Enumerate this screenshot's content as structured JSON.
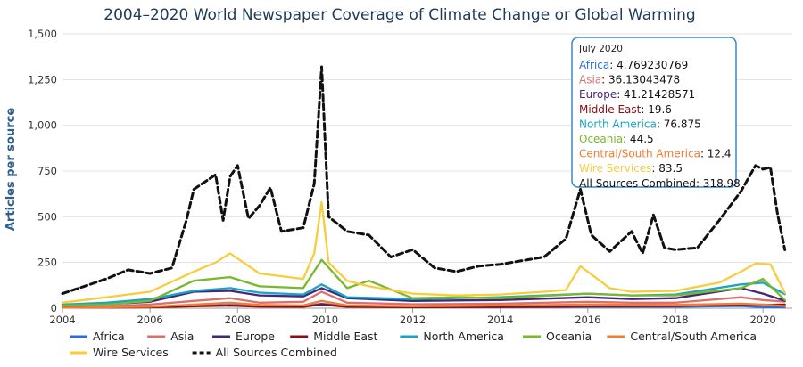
{
  "chart_data": {
    "type": "line",
    "title": "2004–2020 World Newspaper Coverage of Climate Change or Global Warming",
    "ylabel": "Articles per source",
    "xlabel": "",
    "xlim": [
      2004,
      2020.67
    ],
    "ylim": [
      0,
      1500
    ],
    "x_ticks": [
      "2004",
      "2006",
      "2008",
      "2010",
      "2012",
      "2014",
      "2016",
      "2018",
      "2020"
    ],
    "y_ticks": [
      "0",
      "250",
      "500",
      "750",
      "1,000",
      "1,250",
      "1,500"
    ],
    "grid": true,
    "legend_position": "bottom",
    "series": [
      {
        "name": "Africa",
        "color": "#2b6fd6",
        "dashed": false,
        "points": [
          [
            2004,
            5
          ],
          [
            2005,
            6
          ],
          [
            2006,
            8
          ],
          [
            2007,
            12
          ],
          [
            2007.83,
            18
          ],
          [
            2008.5,
            11
          ],
          [
            2009.5,
            9
          ],
          [
            2009.92,
            25
          ],
          [
            2010.5,
            9
          ],
          [
            2012,
            5
          ],
          [
            2014,
            5
          ],
          [
            2016,
            7
          ],
          [
            2018,
            8
          ],
          [
            2019.5,
            12
          ],
          [
            2020,
            6
          ],
          [
            2020.5,
            5
          ]
        ]
      },
      {
        "name": "Asia",
        "color": "#d9706e",
        "dashed": false,
        "points": [
          [
            2004,
            5
          ],
          [
            2005,
            10
          ],
          [
            2006,
            20
          ],
          [
            2007,
            40
          ],
          [
            2007.83,
            55
          ],
          [
            2008.5,
            30
          ],
          [
            2009.5,
            35
          ],
          [
            2009.92,
            90
          ],
          [
            2010.5,
            30
          ],
          [
            2012,
            22
          ],
          [
            2014,
            25
          ],
          [
            2016,
            35
          ],
          [
            2017,
            30
          ],
          [
            2018,
            30
          ],
          [
            2019.5,
            60
          ],
          [
            2020,
            45
          ],
          [
            2020.5,
            36
          ]
        ]
      },
      {
        "name": "Europe",
        "color": "#452779",
        "dashed": false,
        "points": [
          [
            2004,
            15
          ],
          [
            2005,
            22
          ],
          [
            2006,
            35
          ],
          [
            2007,
            90
          ],
          [
            2007.83,
            95
          ],
          [
            2008.5,
            70
          ],
          [
            2009.5,
            65
          ],
          [
            2009.92,
            110
          ],
          [
            2010.5,
            55
          ],
          [
            2012,
            40
          ],
          [
            2014,
            45
          ],
          [
            2016,
            60
          ],
          [
            2017,
            50
          ],
          [
            2018,
            55
          ],
          [
            2019.5,
            110
          ],
          [
            2020,
            80
          ],
          [
            2020.5,
            41
          ]
        ]
      },
      {
        "name": "Middle East",
        "color": "#8b0e14",
        "dashed": false,
        "points": [
          [
            2004,
            3
          ],
          [
            2005,
            4
          ],
          [
            2006,
            5
          ],
          [
            2007,
            10
          ],
          [
            2007.83,
            14
          ],
          [
            2008.5,
            9
          ],
          [
            2009.5,
            8
          ],
          [
            2009.92,
            20
          ],
          [
            2010.5,
            8
          ],
          [
            2012,
            6
          ],
          [
            2014,
            7
          ],
          [
            2016,
            10
          ],
          [
            2018,
            12
          ],
          [
            2019.5,
            20
          ],
          [
            2020,
            18
          ],
          [
            2020.5,
            20
          ]
        ]
      },
      {
        "name": "North America",
        "color": "#1aa3c6",
        "dashed": false,
        "points": [
          [
            2004,
            20
          ],
          [
            2005,
            30
          ],
          [
            2006,
            50
          ],
          [
            2007,
            95
          ],
          [
            2007.83,
            110
          ],
          [
            2008.5,
            85
          ],
          [
            2009.5,
            75
          ],
          [
            2009.92,
            130
          ],
          [
            2010.5,
            60
          ],
          [
            2012,
            50
          ],
          [
            2014,
            60
          ],
          [
            2016,
            80
          ],
          [
            2017,
            70
          ],
          [
            2018,
            75
          ],
          [
            2019.5,
            130
          ],
          [
            2020,
            140
          ],
          [
            2020.5,
            77
          ]
        ]
      },
      {
        "name": "Oceania",
        "color": "#79b82c",
        "dashed": false,
        "points": [
          [
            2004,
            15
          ],
          [
            2005,
            20
          ],
          [
            2006,
            40
          ],
          [
            2007,
            150
          ],
          [
            2007.83,
            170
          ],
          [
            2008.5,
            120
          ],
          [
            2009.5,
            110
          ],
          [
            2009.92,
            265
          ],
          [
            2010.5,
            110
          ],
          [
            2011,
            150
          ],
          [
            2012,
            55
          ],
          [
            2013,
            60
          ],
          [
            2014,
            55
          ],
          [
            2016,
            80
          ],
          [
            2017,
            70
          ],
          [
            2018,
            70
          ],
          [
            2019.5,
            110
          ],
          [
            2020,
            160
          ],
          [
            2020.5,
            45
          ]
        ]
      },
      {
        "name": "Central/South America",
        "color": "#f07c36",
        "dashed": false,
        "points": [
          [
            2004,
            3
          ],
          [
            2005,
            5
          ],
          [
            2006,
            8
          ],
          [
            2007,
            20
          ],
          [
            2007.83,
            30
          ],
          [
            2008.5,
            18
          ],
          [
            2009.5,
            15
          ],
          [
            2009.92,
            40
          ],
          [
            2010.5,
            15
          ],
          [
            2012,
            10
          ],
          [
            2014,
            15
          ],
          [
            2016,
            20
          ],
          [
            2018,
            18
          ],
          [
            2019.5,
            25
          ],
          [
            2020,
            20
          ],
          [
            2020.5,
            12
          ]
        ]
      },
      {
        "name": "Wire Services",
        "color": "#f7cc3d",
        "dashed": false,
        "points": [
          [
            2004,
            30
          ],
          [
            2005,
            60
          ],
          [
            2006,
            90
          ],
          [
            2007,
            200
          ],
          [
            2007.5,
            250
          ],
          [
            2007.83,
            300
          ],
          [
            2008.5,
            190
          ],
          [
            2009.5,
            160
          ],
          [
            2009.75,
            300
          ],
          [
            2009.92,
            580
          ],
          [
            2010.08,
            250
          ],
          [
            2010.5,
            150
          ],
          [
            2011,
            120
          ],
          [
            2012,
            80
          ],
          [
            2013,
            70
          ],
          [
            2014,
            75
          ],
          [
            2015,
            90
          ],
          [
            2015.5,
            100
          ],
          [
            2015.83,
            230
          ],
          [
            2016.5,
            110
          ],
          [
            2017,
            90
          ],
          [
            2018,
            95
          ],
          [
            2019,
            140
          ],
          [
            2019.5,
            200
          ],
          [
            2019.83,
            245
          ],
          [
            2020.17,
            240
          ],
          [
            2020.5,
            84
          ]
        ]
      },
      {
        "name": "All Sources Combined",
        "color": "#111111",
        "dashed": true,
        "points": [
          [
            2004,
            80
          ],
          [
            2004.5,
            120
          ],
          [
            2005,
            160
          ],
          [
            2005.5,
            210
          ],
          [
            2006,
            190
          ],
          [
            2006.5,
            220
          ],
          [
            2006.83,
            480
          ],
          [
            2007,
            650
          ],
          [
            2007.5,
            730
          ],
          [
            2007.67,
            480
          ],
          [
            2007.83,
            720
          ],
          [
            2008,
            780
          ],
          [
            2008.25,
            490
          ],
          [
            2008.5,
            560
          ],
          [
            2008.75,
            660
          ],
          [
            2009,
            420
          ],
          [
            2009.5,
            440
          ],
          [
            2009.75,
            680
          ],
          [
            2009.92,
            1320
          ],
          [
            2010.08,
            500
          ],
          [
            2010.5,
            420
          ],
          [
            2011,
            400
          ],
          [
            2011.5,
            280
          ],
          [
            2012,
            320
          ],
          [
            2012.5,
            220
          ],
          [
            2013,
            200
          ],
          [
            2013.5,
            230
          ],
          [
            2014,
            240
          ],
          [
            2014.5,
            260
          ],
          [
            2015,
            280
          ],
          [
            2015.5,
            380
          ],
          [
            2015.83,
            650
          ],
          [
            2016.08,
            400
          ],
          [
            2016.5,
            310
          ],
          [
            2017,
            420
          ],
          [
            2017.25,
            300
          ],
          [
            2017.5,
            510
          ],
          [
            2017.75,
            330
          ],
          [
            2018,
            320
          ],
          [
            2018.5,
            330
          ],
          [
            2019,
            480
          ],
          [
            2019.5,
            640
          ],
          [
            2019.83,
            780
          ],
          [
            2020,
            760
          ],
          [
            2020.17,
            770
          ],
          [
            2020.33,
            520
          ],
          [
            2020.5,
            319
          ]
        ]
      }
    ],
    "tooltip": {
      "header": "July 2020",
      "rows": [
        {
          "label": "Africa",
          "value": "4.769230769",
          "color": "#2b6fd6"
        },
        {
          "label": "Asia",
          "value": "36.13043478",
          "color": "#d9706e"
        },
        {
          "label": "Europe",
          "value": "41.21428571",
          "color": "#452779"
        },
        {
          "label": "Middle East",
          "value": "19.6",
          "color": "#8b0e14"
        },
        {
          "label": "North America",
          "value": "76.875",
          "color": "#1aa3c6"
        },
        {
          "label": "Oceania",
          "value": "44.5",
          "color": "#79b82c"
        },
        {
          "label": "Central/South America",
          "value": "12.4",
          "color": "#f07c36"
        },
        {
          "label": "Wire Services",
          "value": "83.5",
          "color": "#f7cc3d"
        },
        {
          "label": "All Sources Combined",
          "value": "318.98",
          "color": "#111111"
        }
      ]
    }
  }
}
